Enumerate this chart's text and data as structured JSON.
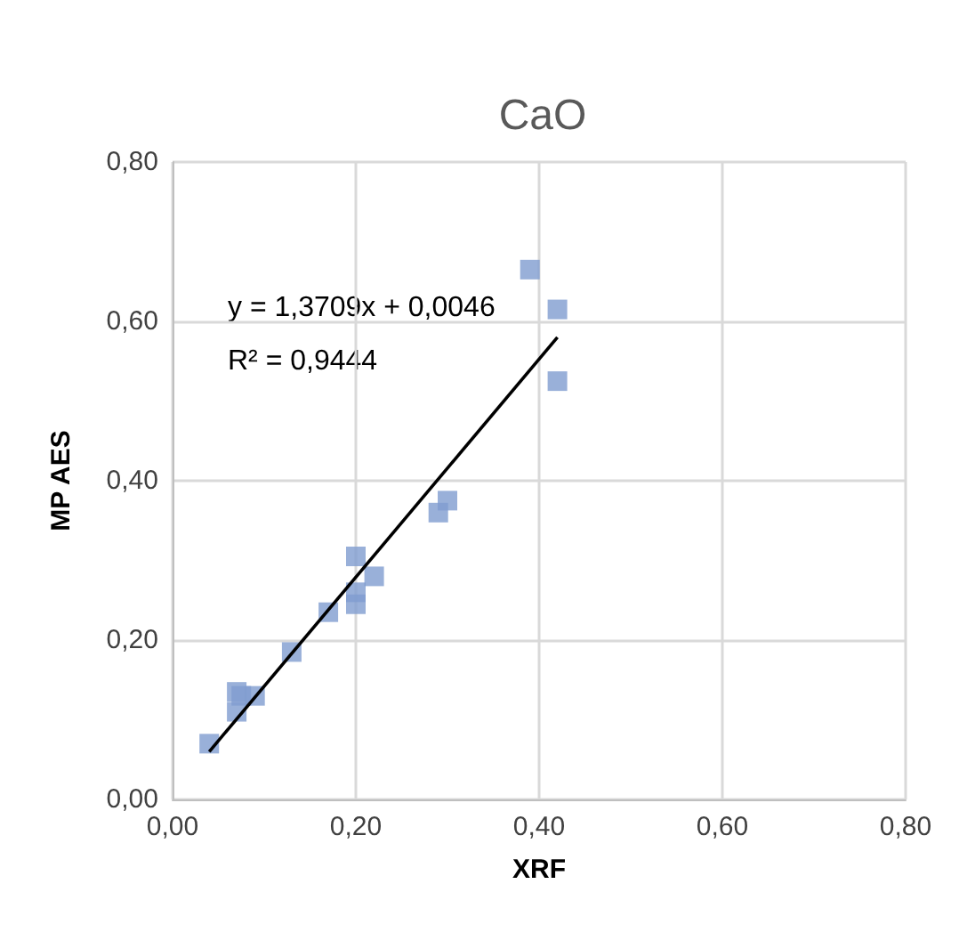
{
  "chart_data": {
    "type": "scatter",
    "title": "CaO",
    "xlabel": "XRF",
    "ylabel": "MP AES",
    "series": [
      {
        "color": "#7f9ccf",
        "x": [
          0.04,
          0.07,
          0.07,
          0.075,
          0.09,
          0.13,
          0.17,
          0.2,
          0.2,
          0.2,
          0.22,
          0.29,
          0.3,
          0.39,
          0.42,
          0.42
        ],
        "values": [
          0.07,
          0.11,
          0.135,
          0.13,
          0.13,
          0.185,
          0.235,
          0.245,
          0.26,
          0.305,
          0.28,
          0.36,
          0.375,
          0.665,
          0.615,
          0.525
        ],
        "marker": "square"
      },
      {
        "type": "line",
        "color": "#000000",
        "x": [
          0.04,
          0.42
        ],
        "values": [
          0.06,
          0.58
        ],
        "marker": "none",
        "line_style": "solid"
      }
    ],
    "annotations": [
      "y = 1,3709x + 0,0046",
      "R² = 0,9444"
    ],
    "xlim": [
      0,
      0.8
    ],
    "ylim": [
      0,
      0.8
    ],
    "xticks": [
      {
        "value": 0,
        "label": "0,00"
      },
      {
        "value": 0.2,
        "label": "0,20"
      },
      {
        "value": 0.4,
        "label": "0,40"
      },
      {
        "value": 0.6,
        "label": "0,60"
      },
      {
        "value": 0.8,
        "label": "0,80"
      }
    ],
    "yticks": [
      {
        "value": 0,
        "label": "0,00"
      },
      {
        "value": 0.2,
        "label": "0,20"
      },
      {
        "value": 0.4,
        "label": "0,40"
      },
      {
        "value": 0.6,
        "label": "0,60"
      },
      {
        "value": 0.8,
        "label": "0,80"
      }
    ],
    "grid": true
  }
}
